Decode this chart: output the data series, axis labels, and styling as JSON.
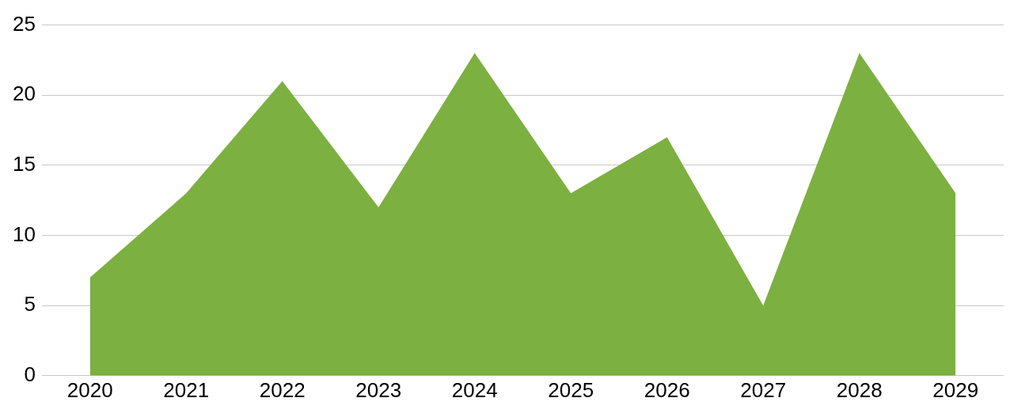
{
  "chart_data": {
    "type": "area",
    "categories": [
      "2020",
      "2021",
      "2022",
      "2023",
      "2024",
      "2025",
      "2026",
      "2027",
      "2028",
      "2029"
    ],
    "series": [
      {
        "color": "#7cb040",
        "values": [
          7,
          13,
          21,
          12,
          23,
          13,
          17,
          5,
          23,
          13
        ]
      }
    ],
    "ylim": [
      0,
      25
    ],
    "yticks": [
      0,
      5,
      10,
      15,
      20,
      25
    ],
    "grid": "y",
    "legend": false
  }
}
